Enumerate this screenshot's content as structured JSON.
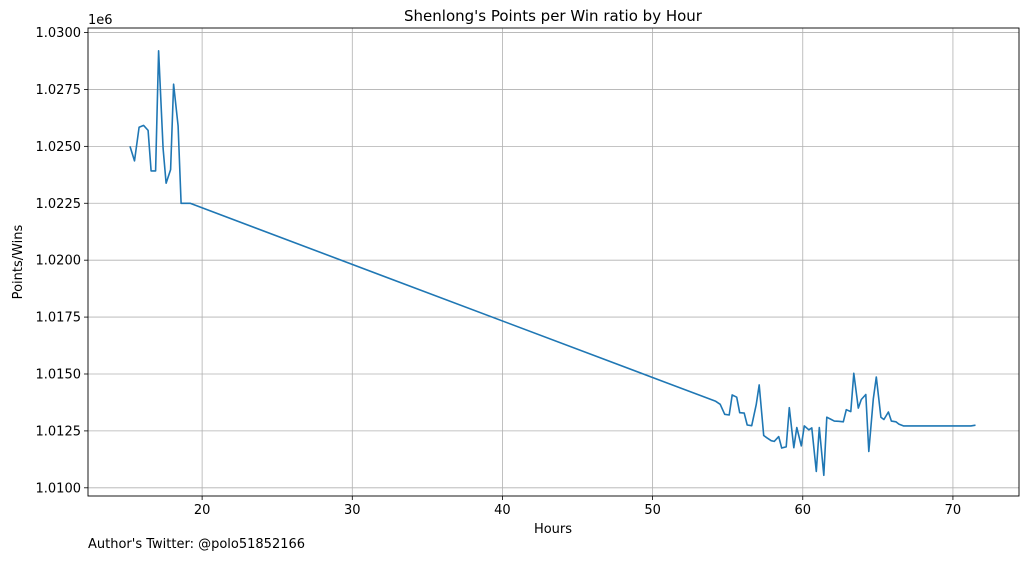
{
  "chart_data": {
    "type": "line",
    "title": "Shenlong's Points per Win ratio by Hour",
    "xlabel": "Hours",
    "ylabel": "Points/Wins",
    "y_offset_label": "1e6",
    "xlim": [
      12.4,
      74.4
    ],
    "ylim": [
      1.00964,
      1.0302
    ],
    "x_ticks": [
      20,
      30,
      40,
      50,
      60,
      70
    ],
    "x_tick_labels": [
      "20",
      "30",
      "40",
      "50",
      "60",
      "70"
    ],
    "y_ticks": [
      1.01,
      1.0125,
      1.015,
      1.0175,
      1.02,
      1.0225,
      1.025,
      1.0275,
      1.03
    ],
    "y_tick_labels": [
      "1.0100",
      "1.0125",
      "1.0150",
      "1.0175",
      "1.0200",
      "1.0225",
      "1.0250",
      "1.0275",
      "1.0300"
    ],
    "grid": true,
    "color": "#1f77b4",
    "series": [
      {
        "x": [
          15.2,
          15.5,
          15.8,
          16.1,
          16.4,
          16.6,
          16.9,
          17.1,
          17.4,
          17.6,
          17.9,
          18.1,
          18.4,
          18.6,
          18.9,
          19.2,
          54.2,
          54.5,
          54.8,
          55.1,
          55.3,
          55.6,
          55.8,
          56.1,
          56.3,
          56.6,
          56.9,
          57.1,
          57.4,
          57.6,
          57.9,
          58.1,
          58.4,
          58.6,
          58.9,
          59.1,
          59.4,
          59.6,
          59.9,
          60.1,
          60.4,
          60.6,
          60.9,
          61.1,
          61.4,
          61.6,
          61.9,
          62.1,
          62.4,
          62.7,
          62.9,
          63.2,
          63.4,
          63.7,
          63.9,
          64.2,
          64.4,
          64.7,
          64.9,
          65.2,
          65.4,
          65.7,
          65.9,
          66.2,
          66.4,
          66.7,
          67.5,
          68.5,
          69.5,
          70.5,
          71.2,
          71.5
        ],
        "y": [
          1.025,
          1.02436,
          1.02584,
          1.02592,
          1.0257,
          1.02392,
          1.02392,
          1.0292,
          1.0249,
          1.02338,
          1.02398,
          1.02773,
          1.0259,
          1.0225,
          1.0225,
          1.0225,
          1.0138,
          1.01367,
          1.01323,
          1.0132,
          1.01408,
          1.01398,
          1.0133,
          1.01328,
          1.01276,
          1.01273,
          1.01365,
          1.01452,
          1.0123,
          1.0122,
          1.01207,
          1.01204,
          1.01225,
          1.01175,
          1.0118,
          1.01352,
          1.01176,
          1.01265,
          1.01184,
          1.01272,
          1.01255,
          1.01263,
          1.01072,
          1.01265,
          1.01055,
          1.0131,
          1.013,
          1.01293,
          1.01292,
          1.0129,
          1.01343,
          1.01335,
          1.01503,
          1.0135,
          1.01388,
          1.0141,
          1.0116,
          1.0139,
          1.01487,
          1.0131,
          1.013,
          1.01333,
          1.01293,
          1.0129,
          1.0128,
          1.01272,
          1.01272,
          1.01272,
          1.01272,
          1.01272,
          1.01272,
          1.01275
        ]
      }
    ]
  },
  "footer": {
    "twitter_note": "Author's Twitter: @polo51852166"
  }
}
